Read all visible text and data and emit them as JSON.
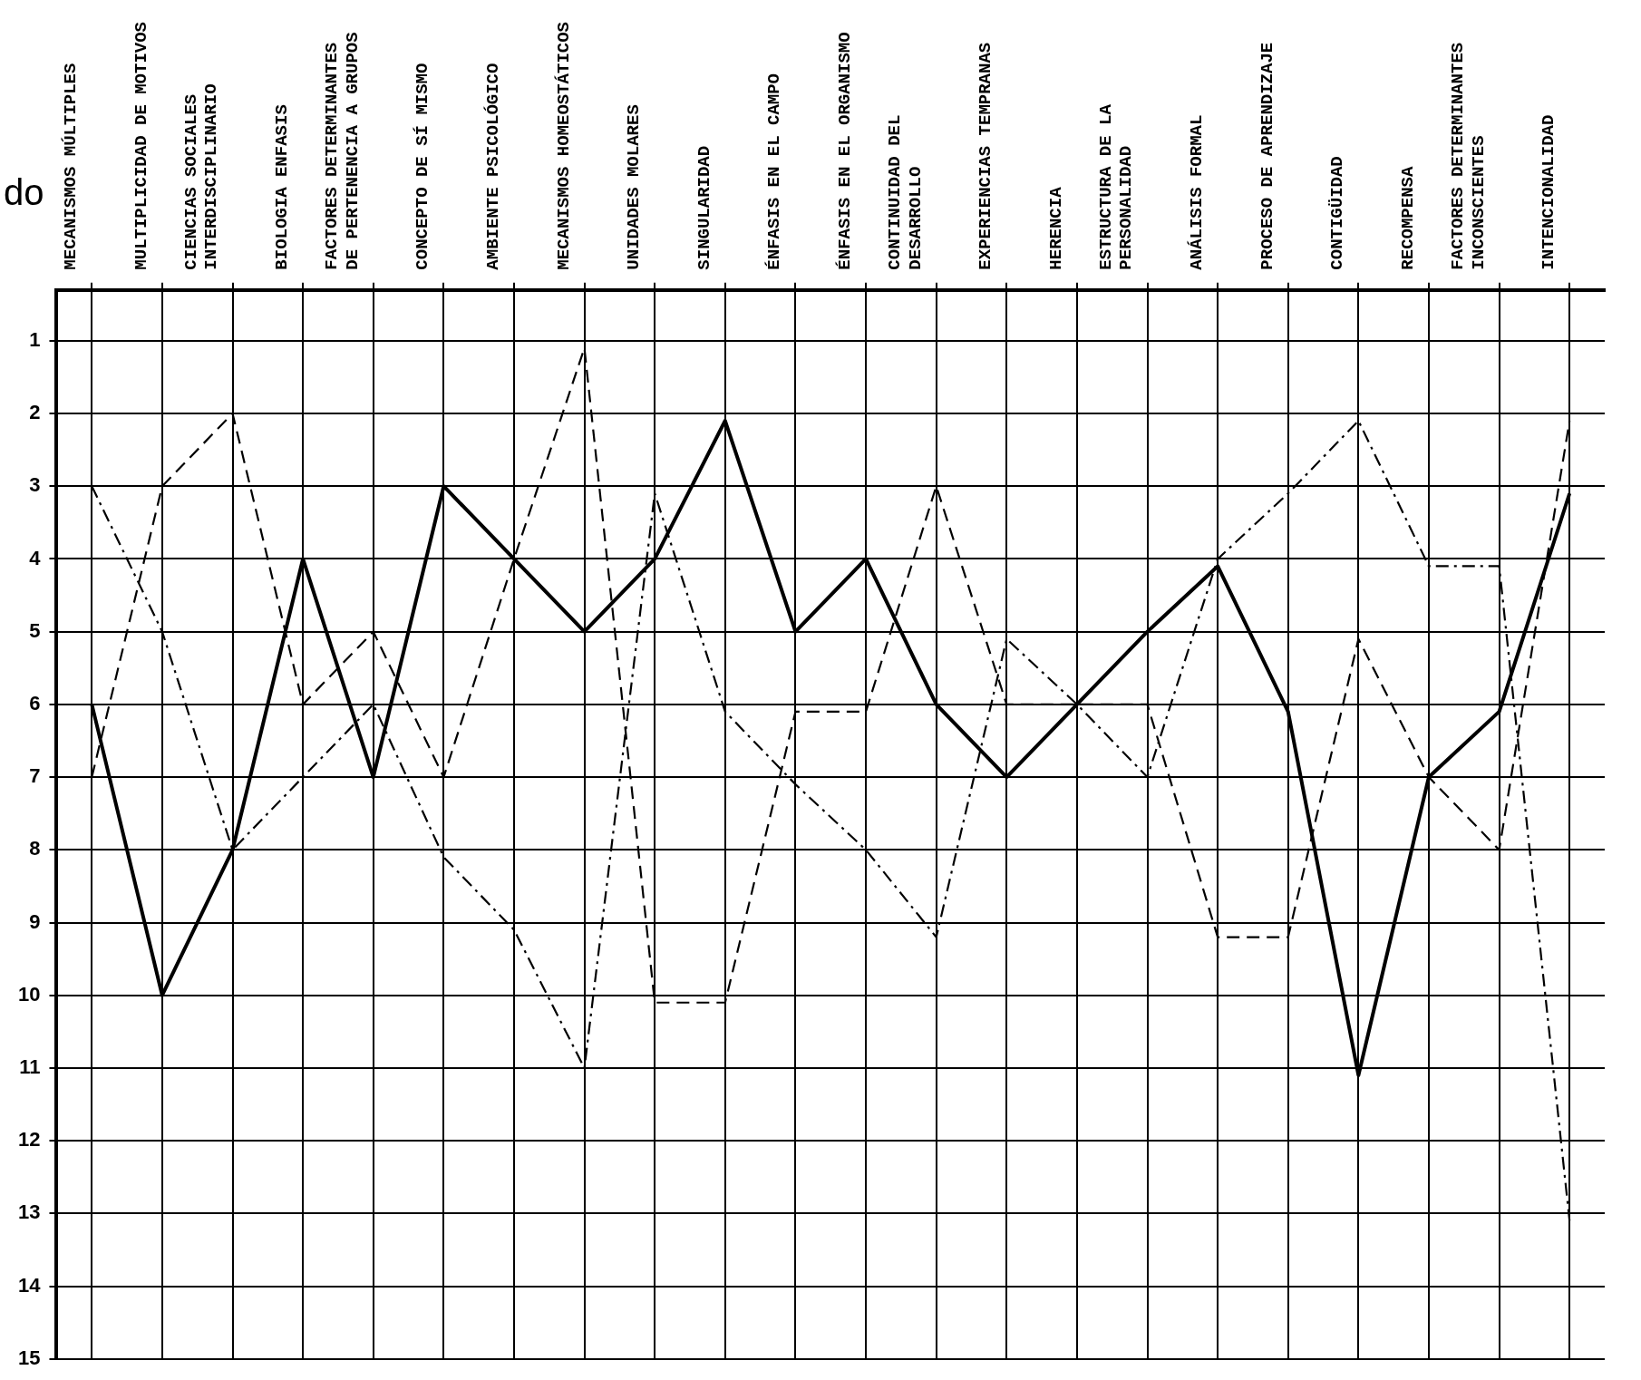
{
  "chart_data": {
    "type": "line",
    "annotations": [
      "do"
    ],
    "categories": [
      "MECANISMOS MÚLTIPLES",
      "MULTIPLICIDAD DE MOTIVOS",
      "CIENCIAS SOCIALES INTERDISCIPLINARIO",
      "BIOLOGIA ENFASIS",
      "FACTORES DETERMINANTES DE PERTENENCIA A GRUPOS",
      "CONCEPTO DE SÍ MISMO",
      "AMBIENTE PSICOLÓGICO",
      "MECANISMOS HOMEOSTÁTICOS",
      "UNIDADES MOLARES",
      "SINGULARIDAD",
      "ÉNFASIS EN EL CAMPO",
      "ÉNFASIS EN EL ORGANISMO",
      "CONTINUIDAD DEL DESARROLLO",
      "EXPERIENCIAS TEMPRANAS",
      "HERENCIA",
      "ESTRUCTURA DE LA PERSONALIDAD",
      "ANÁLISIS FORMAL",
      "PROCESO DE APRENDIZAJE",
      "CONTIGÜIDAD",
      "RECOMPENSA",
      "FACTORES DETERMINANTES INCONSCIENTES",
      "INTENCIONALIDAD"
    ],
    "series": [
      {
        "color": "#000000",
        "line_style": "solid",
        "values": [
          6,
          10,
          8,
          4,
          7,
          3,
          4,
          5,
          4,
          2.1,
          5,
          4,
          6,
          7,
          6,
          5,
          4.1,
          6.1,
          11.1,
          7,
          6.1,
          3.1
        ]
      },
      {
        "color": "#000000",
        "line_style": "dashed",
        "values": [
          7,
          3,
          2,
          6,
          5,
          7,
          4,
          1.1,
          10.1,
          10.1,
          6.1,
          6.1,
          3,
          6,
          6,
          6,
          9.2,
          9.2,
          5.1,
          7,
          8,
          2.1
        ]
      },
      {
        "color": "#000000",
        "line_style": "dashdot",
        "values": [
          3,
          5,
          8,
          7,
          6,
          8.1,
          9.1,
          11,
          3.1,
          6.1,
          7.1,
          8,
          9.2,
          5.1,
          6,
          7,
          4,
          3.1,
          2.1,
          4.1,
          4.1,
          13.1
        ]
      }
    ],
    "ylim": [
      15,
      0.3
    ],
    "yticks": [
      1,
      2,
      3,
      4,
      5,
      6,
      7,
      8,
      9,
      10,
      11,
      12,
      13,
      14,
      15
    ],
    "grid": true,
    "marker": "none",
    "legend": false
  }
}
